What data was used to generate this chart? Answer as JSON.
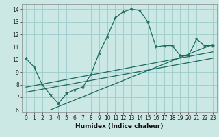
{
  "title": "",
  "xlabel": "Humidex (Indice chaleur)",
  "bg_color": "#cce8e4",
  "grid_color": "#99cccc",
  "line_color": "#1a6a60",
  "xlim": [
    -0.5,
    23.5
  ],
  "ylim": [
    5.8,
    14.4
  ],
  "xticks": [
    0,
    1,
    2,
    3,
    4,
    5,
    6,
    7,
    8,
    9,
    10,
    11,
    12,
    13,
    14,
    15,
    16,
    17,
    18,
    19,
    20,
    21,
    22,
    23
  ],
  "yticks": [
    6,
    7,
    8,
    9,
    10,
    11,
    12,
    13,
    14
  ],
  "main_x": [
    0,
    1,
    2,
    3,
    4,
    5,
    6,
    7,
    8,
    9,
    10,
    11,
    12,
    13,
    14,
    15,
    16,
    17,
    18,
    19,
    20,
    21,
    22,
    23
  ],
  "main_y": [
    10.1,
    9.4,
    8.0,
    7.2,
    6.5,
    7.3,
    7.6,
    7.8,
    8.8,
    10.5,
    11.8,
    13.3,
    13.8,
    14.0,
    13.9,
    13.0,
    11.0,
    11.1,
    11.1,
    10.3,
    10.3,
    11.6,
    11.1,
    11.1
  ],
  "line2_x": [
    0,
    23
  ],
  "line2_y": [
    7.4,
    10.1
  ],
  "line3_x": [
    0,
    23
  ],
  "line3_y": [
    7.8,
    10.6
  ],
  "line4_x": [
    3,
    23
  ],
  "line4_y": [
    6.0,
    11.2
  ],
  "marker_size": 3.5,
  "line_width": 0.9,
  "tick_fontsize": 5.5,
  "xlabel_fontsize": 6.5
}
